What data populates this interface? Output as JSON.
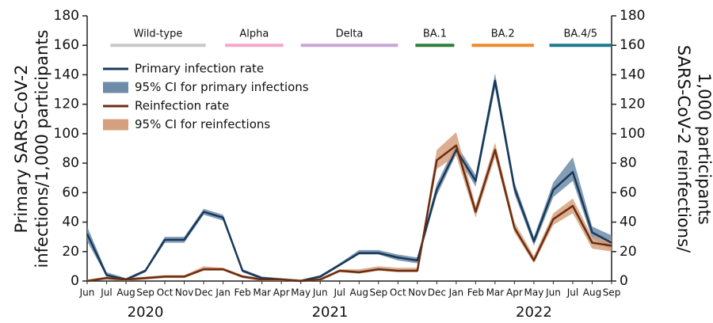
{
  "chart_data": {
    "type": "line",
    "ylabel": [
      "Primary SARS-CoV-2",
      "infections/1,000 participants"
    ],
    "y2label": [
      "SARS-CoV-2 reinfections/",
      "1,000 participants"
    ],
    "categories": [
      "Jun",
      "Jul",
      "Aug",
      "Sep",
      "Oct",
      "Nov",
      "Dec",
      "Jan",
      "Feb",
      "Mar",
      "Apr",
      "May",
      "Jun",
      "Jul",
      "Aug",
      "Sep",
      "Oct",
      "Nov",
      "Dec",
      "Jan",
      "Feb",
      "Mar",
      "Apr",
      "May",
      "Jun",
      "Jul",
      "Aug",
      "Sep"
    ],
    "years": [
      "2020",
      "2021",
      "2022"
    ],
    "ylim": [
      0,
      180
    ],
    "yticks": [
      0,
      20,
      40,
      60,
      80,
      100,
      120,
      140,
      160,
      180
    ],
    "y2lim": [
      0,
      180
    ],
    "y2ticks": [
      0,
      20,
      40,
      60,
      80,
      100,
      120,
      140,
      160,
      180
    ],
    "series": [
      {
        "name": "Primary infection rate",
        "color": "#17385a",
        "values": [
          32,
          4,
          1,
          7,
          28,
          28,
          47,
          43,
          7,
          2,
          1,
          0,
          3,
          11,
          19,
          19,
          16,
          14,
          62,
          89,
          68,
          136,
          63,
          27,
          62,
          74,
          33,
          26
        ]
      },
      {
        "name": "95% CI for primary infections",
        "color": "#6d8ca8",
        "band_of": 0,
        "upper": [
          37,
          6,
          2,
          8,
          30,
          30,
          49,
          45,
          8,
          3,
          2,
          1,
          4,
          12,
          21,
          21,
          18,
          16,
          66,
          93,
          72,
          141,
          67,
          30,
          67,
          84,
          37,
          31
        ],
        "lower": [
          27,
          3,
          0,
          6,
          26,
          26,
          45,
          41,
          6,
          1,
          0,
          0,
          2,
          10,
          18,
          18,
          14,
          12,
          58,
          86,
          64,
          131,
          59,
          24,
          57,
          68,
          29,
          21
        ]
      },
      {
        "name": "Reinfection rate",
        "color": "#6b2d0f",
        "axis": "y2",
        "values": [
          0,
          2,
          1,
          2,
          3,
          3,
          8,
          8,
          3,
          1,
          1,
          0,
          1,
          7,
          6,
          8,
          7,
          7,
          82,
          92,
          47,
          89,
          36,
          14,
          42,
          51,
          26,
          24
        ]
      },
      {
        "name": "95% CI for reinfections",
        "color": "#d6a07f",
        "axis": "y2",
        "band_of": 2,
        "upper": [
          1,
          3,
          2,
          3,
          4,
          4,
          10,
          9,
          4,
          2,
          2,
          1,
          2,
          8,
          8,
          10,
          9,
          9,
          89,
          101,
          51,
          94,
          40,
          17,
          46,
          56,
          30,
          28
        ],
        "lower": [
          0,
          1,
          0,
          1,
          2,
          2,
          7,
          7,
          2,
          0,
          0,
          0,
          0,
          6,
          5,
          7,
          6,
          6,
          76,
          85,
          43,
          84,
          33,
          12,
          38,
          46,
          22,
          20
        ]
      }
    ],
    "variants": [
      {
        "name": "Wild-type",
        "color": "#c8c8c8",
        "span": [
          1.2,
          6.1
        ]
      },
      {
        "name": "Alpha",
        "color": "#f2a8c9",
        "span": [
          7.1,
          10.1
        ]
      },
      {
        "name": "Delta",
        "color": "#c9a4d7",
        "span": [
          11.0,
          16.0
        ]
      },
      {
        "name": "BA.1",
        "color": "#2e7d3a",
        "span": [
          16.9,
          18.9
        ]
      },
      {
        "name": "BA.2",
        "color": "#f0892a",
        "span": [
          19.8,
          23.0
        ]
      },
      {
        "name": "BA.4/5",
        "color": "#1b7a8c",
        "span": [
          23.8,
          27.0
        ]
      }
    ]
  }
}
